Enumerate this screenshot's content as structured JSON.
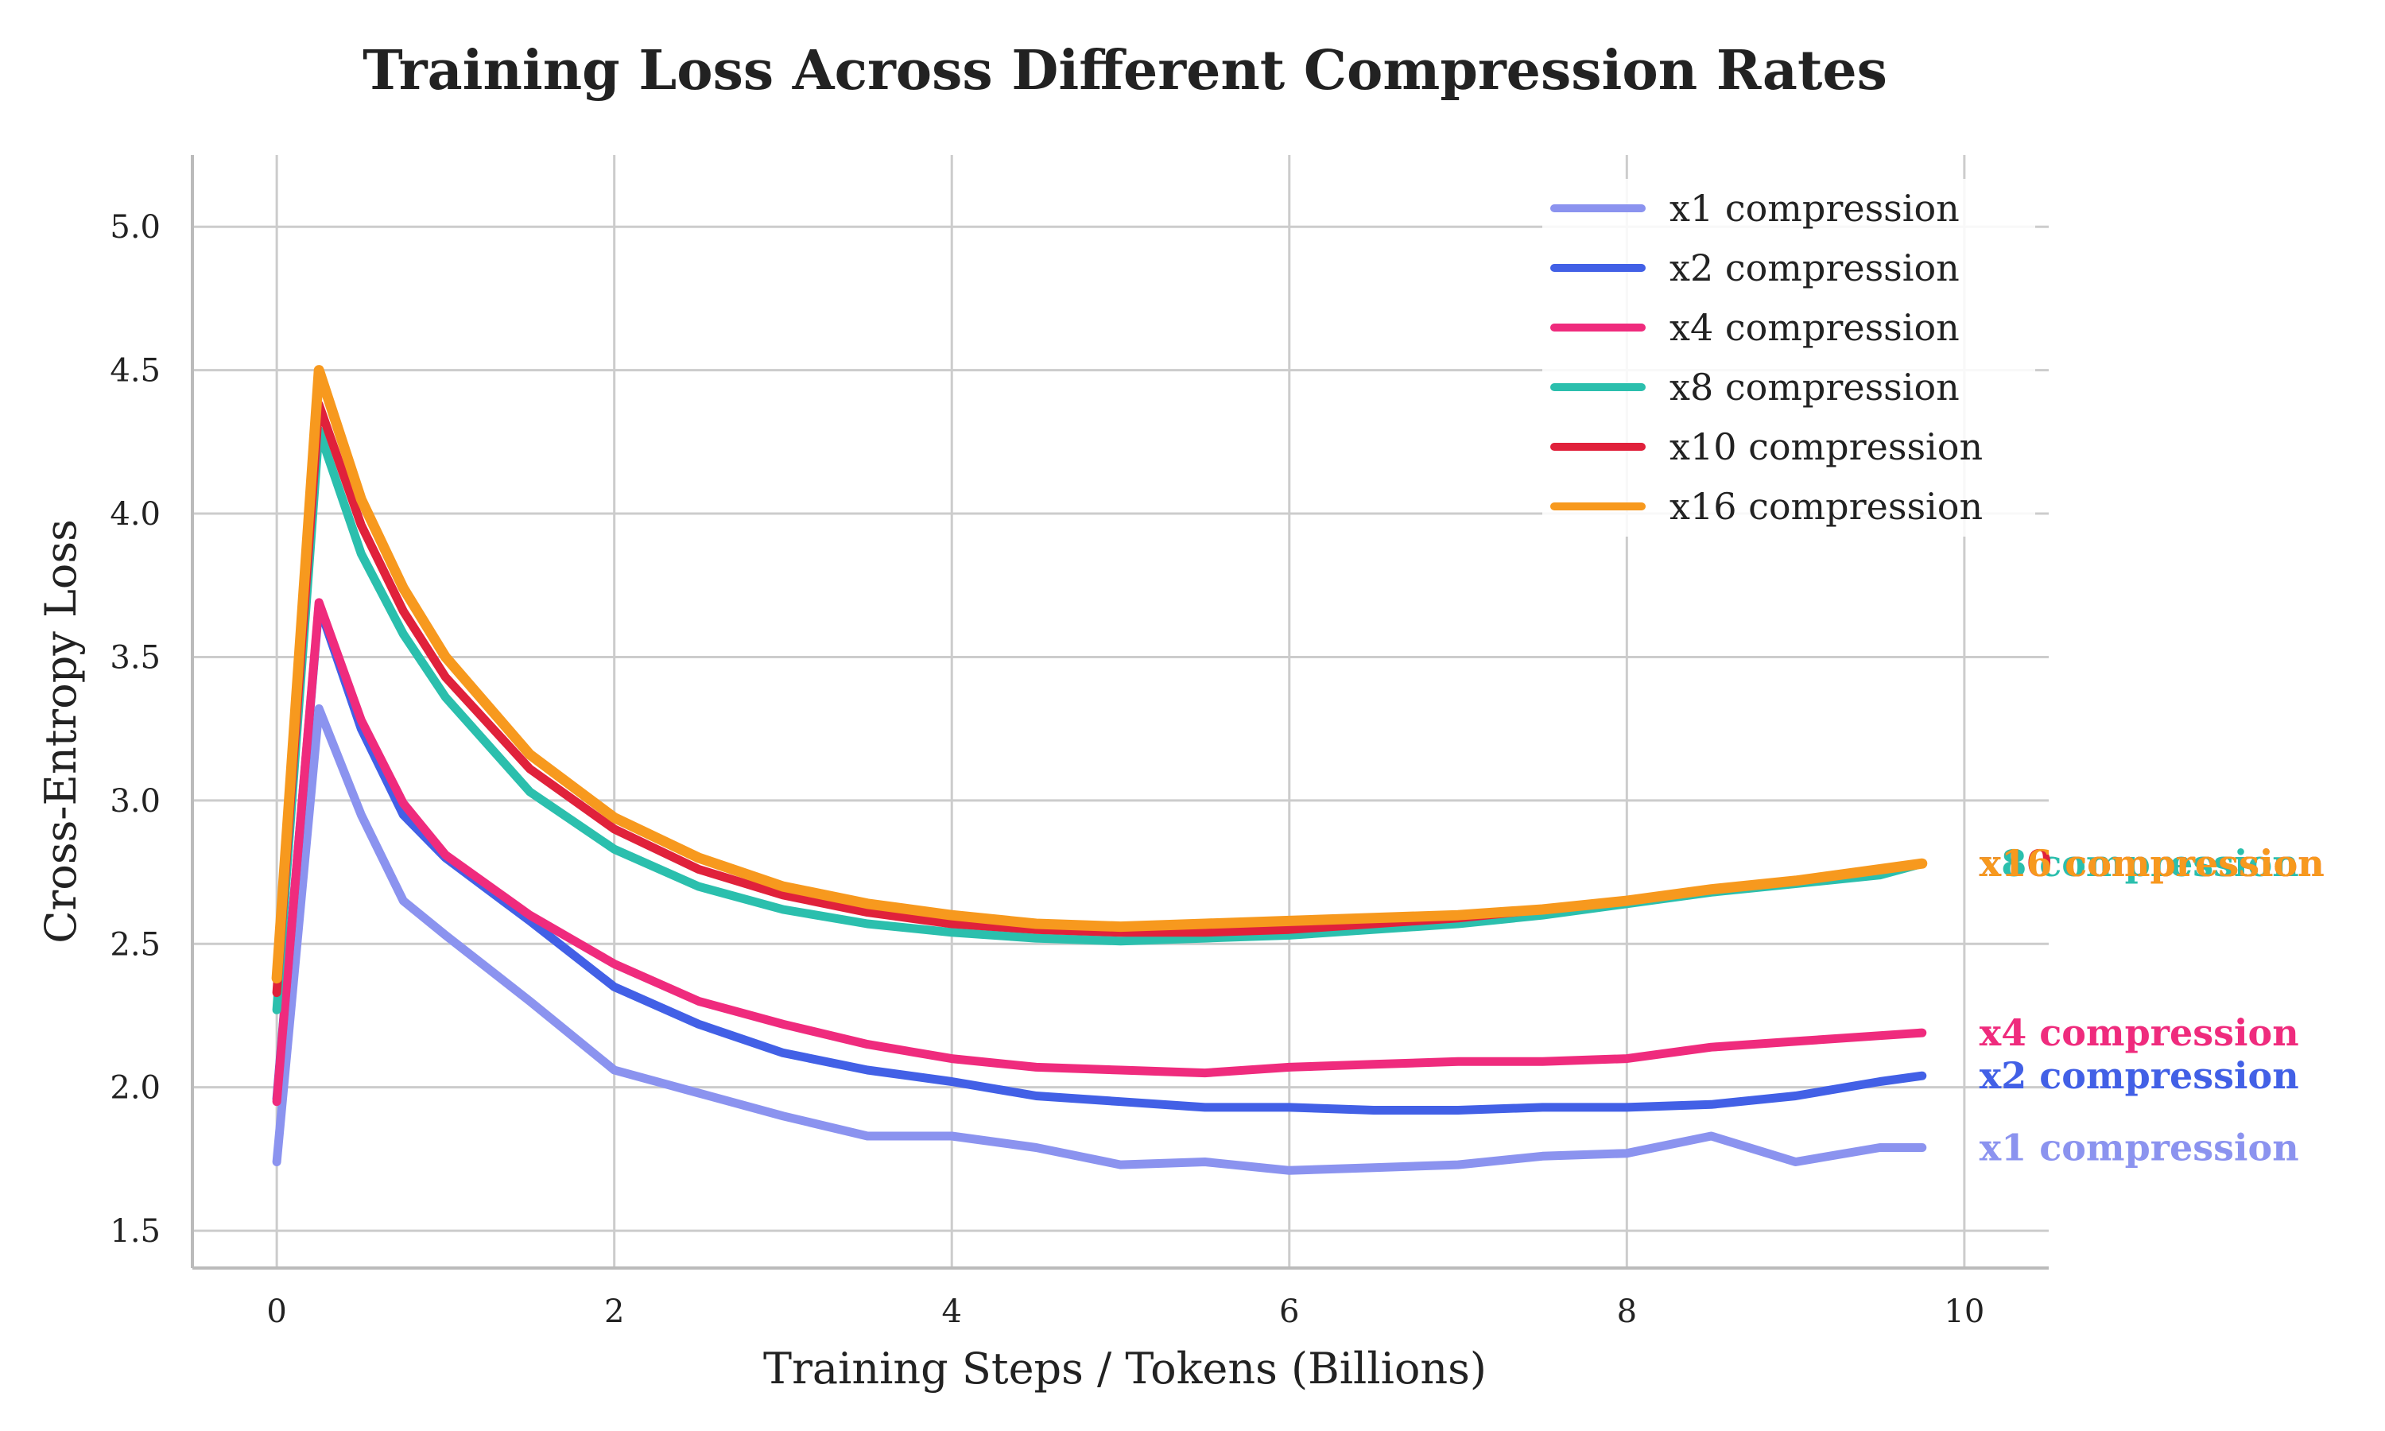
{
  "chart_data": {
    "type": "line",
    "title": "Training Loss Across Different Compression Rates",
    "xlabel": "Training Steps / Tokens (Billions)",
    "ylabel": "Cross-Entropy Loss",
    "xlim": [
      -0.5,
      10.5
    ],
    "ylim": [
      1.37,
      5.25
    ],
    "xticks": [
      0,
      2,
      4,
      6,
      8,
      10
    ],
    "yticks": [
      1.5,
      2.0,
      2.5,
      3.0,
      3.5,
      4.0,
      4.5,
      5.0
    ],
    "xtick_labels": [
      "0",
      "2",
      "4",
      "6",
      "8",
      "10"
    ],
    "ytick_labels": [
      "1.5",
      "2.0",
      "2.5",
      "3.0",
      "3.5",
      "4.0",
      "4.5",
      "5.0"
    ],
    "grid": true,
    "legend_position": "top-right",
    "x": [
      0,
      0.25,
      0.5,
      0.75,
      1,
      1.5,
      2,
      2.5,
      3,
      3.5,
      4,
      4.5,
      5,
      5.5,
      6,
      6.5,
      7,
      7.5,
      8,
      8.5,
      9,
      9.5,
      9.75
    ],
    "series": [
      {
        "name": "x1 compression",
        "end_label": "x1 compression",
        "color": "#8b93ef",
        "values": [
          1.74,
          3.32,
          2.95,
          2.65,
          2.53,
          2.3,
          2.06,
          1.98,
          1.9,
          1.83,
          1.83,
          1.79,
          1.73,
          1.74,
          1.71,
          1.72,
          1.73,
          1.76,
          1.77,
          1.83,
          1.74,
          1.79,
          1.79
        ]
      },
      {
        "name": "x2 compression",
        "end_label": "x2 compression",
        "color": "#4260e6",
        "values": [
          1.96,
          3.68,
          3.25,
          2.95,
          2.8,
          2.58,
          2.35,
          2.22,
          2.12,
          2.06,
          2.02,
          1.97,
          1.95,
          1.93,
          1.93,
          1.92,
          1.92,
          1.93,
          1.93,
          1.94,
          1.97,
          2.02,
          2.04
        ]
      },
      {
        "name": "x4 compression",
        "end_label": "x4 compression",
        "color": "#ef2b7d",
        "values": [
          1.95,
          3.69,
          3.28,
          2.99,
          2.81,
          2.6,
          2.43,
          2.3,
          2.22,
          2.15,
          2.1,
          2.07,
          2.06,
          2.05,
          2.07,
          2.08,
          2.09,
          2.09,
          2.1,
          2.14,
          2.16,
          2.18,
          2.19
        ]
      },
      {
        "name": "x8 compression",
        "end_label": "x8 compression",
        "color": "#2bbfad",
        "values": [
          2.27,
          4.29,
          3.86,
          3.58,
          3.36,
          3.03,
          2.83,
          2.7,
          2.62,
          2.57,
          2.54,
          2.52,
          2.51,
          2.52,
          2.53,
          2.55,
          2.57,
          2.6,
          2.64,
          2.68,
          2.71,
          2.74,
          2.78
        ]
      },
      {
        "name": "x10 compression",
        "end_label": "x10 compression",
        "color": "#e0213b",
        "values": [
          2.33,
          4.38,
          3.96,
          3.66,
          3.43,
          3.11,
          2.9,
          2.76,
          2.67,
          2.61,
          2.57,
          2.55,
          2.54,
          2.54,
          2.55,
          2.57,
          2.59,
          2.62,
          2.65,
          2.69,
          2.72,
          2.76,
          2.78
        ]
      },
      {
        "name": "x16 compression",
        "end_label": "x16 compression",
        "color": "#f7991e",
        "values": [
          2.38,
          4.5,
          4.05,
          3.74,
          3.5,
          3.16,
          2.94,
          2.8,
          2.7,
          2.64,
          2.6,
          2.57,
          2.56,
          2.57,
          2.58,
          2.59,
          2.6,
          2.62,
          2.65,
          2.69,
          2.72,
          2.76,
          2.78
        ]
      }
    ]
  }
}
